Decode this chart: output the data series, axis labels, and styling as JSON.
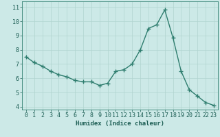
{
  "x": [
    0,
    1,
    2,
    3,
    4,
    5,
    6,
    7,
    8,
    9,
    10,
    11,
    12,
    13,
    14,
    15,
    16,
    17,
    18,
    19,
    20,
    21,
    22,
    23
  ],
  "y": [
    7.5,
    7.1,
    6.85,
    6.5,
    6.25,
    6.1,
    5.85,
    5.75,
    5.75,
    5.5,
    5.65,
    6.5,
    6.6,
    7.0,
    8.0,
    9.5,
    9.75,
    10.8,
    8.85,
    6.5,
    5.2,
    4.75,
    4.3,
    4.1
  ],
  "line_color": "#2e7d6e",
  "marker": "+",
  "marker_size": 4,
  "marker_linewidth": 1.0,
  "linewidth": 1.0,
  "bg_color": "#cce9e7",
  "grid_color": "#b0d4d0",
  "xlabel": "Humidex (Indice chaleur)",
  "xlim": [
    -0.5,
    23.5
  ],
  "ylim": [
    3.8,
    11.4
  ],
  "yticks": [
    4,
    5,
    6,
    7,
    8,
    9,
    10,
    11
  ],
  "xticks": [
    0,
    1,
    2,
    3,
    4,
    5,
    6,
    7,
    8,
    9,
    10,
    11,
    12,
    13,
    14,
    15,
    16,
    17,
    18,
    19,
    20,
    21,
    22,
    23
  ],
  "xlabel_fontsize": 6.5,
  "tick_fontsize": 6,
  "axis_color": "#1a5c52",
  "spine_color": "#2e7d6e"
}
